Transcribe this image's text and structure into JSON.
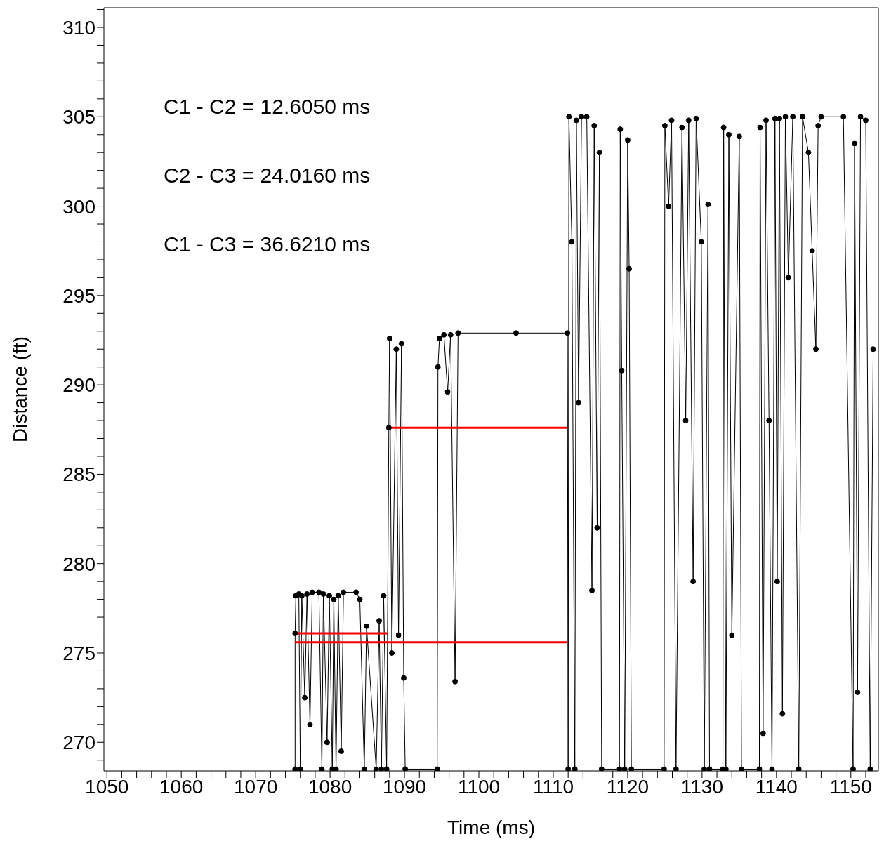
{
  "chart_data": {
    "type": "line",
    "xlabel": "Time (ms)",
    "ylabel": "Distance (ft)",
    "marker": "circle",
    "annotations": [
      "C1 - C2 = 12.6050 ms",
      "C2 - C3 = 24.0160 ms",
      "C1 - C3 = 36.6210 ms"
    ],
    "xlim": [
      1049.6,
      1153.7
    ],
    "ylim": [
      268.4,
      311.1
    ],
    "xticks": [
      1050,
      {
        "value": 1052,
        "label": null
      },
      {
        "value": 1054,
        "label": null
      },
      {
        "value": 1056,
        "label": null
      },
      {
        "value": 1058,
        "label": null
      },
      1060,
      {
        "value": 1062,
        "label": null
      },
      {
        "value": 1064,
        "label": null
      },
      {
        "value": 1066,
        "label": null
      },
      {
        "value": 1068,
        "label": null
      },
      1070,
      {
        "value": 1072,
        "label": null
      },
      {
        "value": 1074,
        "label": null
      },
      {
        "value": 1076,
        "label": null
      },
      {
        "value": 1078,
        "label": null
      },
      1080,
      {
        "value": 1082,
        "label": null
      },
      {
        "value": 1084,
        "label": null
      },
      {
        "value": 1086,
        "label": null
      },
      {
        "value": 1088,
        "label": null
      },
      1090,
      {
        "value": 1092,
        "label": null
      },
      {
        "value": 1094,
        "label": null
      },
      {
        "value": 1096,
        "label": null
      },
      {
        "value": 1098,
        "label": null
      },
      1100,
      {
        "value": 1102,
        "label": null
      },
      {
        "value": 1104,
        "label": null
      },
      {
        "value": 1106,
        "label": null
      },
      {
        "value": 1108,
        "label": null
      },
      1110,
      {
        "value": 1112,
        "label": null
      },
      {
        "value": 1114,
        "label": null
      },
      {
        "value": 1116,
        "label": null
      },
      {
        "value": 1118,
        "label": null
      },
      1120,
      {
        "value": 1122,
        "label": null
      },
      {
        "value": 1124,
        "label": null
      },
      {
        "value": 1126,
        "label": null
      },
      {
        "value": 1128,
        "label": null
      },
      1130,
      {
        "value": 1132,
        "label": null
      },
      {
        "value": 1134,
        "label": null
      },
      {
        "value": 1136,
        "label": null
      },
      {
        "value": 1138,
        "label": null
      },
      1140,
      {
        "value": 1142,
        "label": null
      },
      {
        "value": 1144,
        "label": null
      },
      {
        "value": 1146,
        "label": null
      },
      {
        "value": 1148,
        "label": null
      },
      1150,
      {
        "value": 1152,
        "label": null
      }
    ],
    "yticks": [
      {
        "value": 269,
        "label": null
      },
      270,
      {
        "value": 271,
        "label": null
      },
      {
        "value": 272,
        "label": null
      },
      {
        "value": 273,
        "label": null
      },
      {
        "value": 274,
        "label": null
      },
      275,
      {
        "value": 276,
        "label": null
      },
      {
        "value": 277,
        "label": null
      },
      {
        "value": 278,
        "label": null
      },
      {
        "value": 279,
        "label": null
      },
      280,
      {
        "value": 281,
        "label": null
      },
      {
        "value": 282,
        "label": null
      },
      {
        "value": 283,
        "label": null
      },
      {
        "value": 284,
        "label": null
      },
      285,
      {
        "value": 286,
        "label": null
      },
      {
        "value": 287,
        "label": null
      },
      {
        "value": 288,
        "label": null
      },
      {
        "value": 289,
        "label": null
      },
      290,
      {
        "value": 291,
        "label": null
      },
      {
        "value": 292,
        "label": null
      },
      {
        "value": 293,
        "label": null
      },
      {
        "value": 294,
        "label": null
      },
      295,
      {
        "value": 296,
        "label": null
      },
      {
        "value": 297,
        "label": null
      },
      {
        "value": 298,
        "label": null
      },
      {
        "value": 299,
        "label": null
      },
      300,
      {
        "value": 301,
        "label": null
      },
      {
        "value": 302,
        "label": null
      },
      {
        "value": 303,
        "label": null
      },
      {
        "value": 304,
        "label": null
      },
      305,
      {
        "value": 306,
        "label": null
      },
      {
        "value": 307,
        "label": null
      },
      {
        "value": 308,
        "label": null
      },
      {
        "value": 309,
        "label": null
      },
      310,
      {
        "value": 311,
        "label": null
      }
    ],
    "series": [
      {
        "color": "#000000",
        "x": [
          1075.3,
          1075.3,
          1075.4,
          1075.8,
          1076.0,
          1076.2,
          1076.6,
          1076.9,
          1077.3,
          1077.6,
          1078.5,
          1078.9,
          1079.1,
          1079.6,
          1079.9,
          1080.3,
          1080.5,
          1080.8,
          1081.1,
          1081.5,
          1081.8,
          1083.5,
          1084.0,
          1084.6,
          1084.9,
          1086.2,
          1086.6,
          1086.9,
          1087.2,
          1087.6,
          1087.9,
          1088.0,
          1088.3,
          1088.9,
          1089.2,
          1089.6,
          1089.9,
          1090.1,
          1094.4,
          1094.5,
          1094.7,
          1095.3,
          1095.8,
          1096.2,
          1096.8,
          1097.2,
          1105.0,
          1111.9,
          1112.0,
          1112.1,
          1112.5,
          1112.9,
          1113.1,
          1113.4,
          1113.8,
          1114.5,
          1115.2,
          1115.5,
          1115.9,
          1116.2,
          1116.5,
          1118.9,
          1119.0,
          1119.2,
          1119.6,
          1120.0,
          1120.2,
          1120.5,
          1124.9,
          1125.0,
          1125.5,
          1125.9,
          1126.5,
          1127.3,
          1127.8,
          1128.2,
          1128.8,
          1129.2,
          1129.9,
          1130.3,
          1130.8,
          1131.0,
          1132.8,
          1132.9,
          1133.2,
          1133.6,
          1134.0,
          1135.0,
          1135.3,
          1137.7,
          1137.8,
          1138.2,
          1138.6,
          1139.0,
          1139.4,
          1139.8,
          1140.1,
          1140.4,
          1140.8,
          1141.2,
          1141.6,
          1142.2,
          1143.0,
          1143.5,
          1144.3,
          1144.8,
          1145.3,
          1145.6,
          1146.0,
          1149.0,
          1150.3,
          1150.5,
          1150.9,
          1151.3,
          1152.0,
          1152.6,
          1153.0
        ],
        "values": [
          268.5,
          276.1,
          278.2,
          278.3,
          268.5,
          278.2,
          272.5,
          278.3,
          271.0,
          278.4,
          278.4,
          268.5,
          278.3,
          270.0,
          278.2,
          268.5,
          278.0,
          268.5,
          278.2,
          269.5,
          278.4,
          278.4,
          278.0,
          268.5,
          276.5,
          268.5,
          276.8,
          268.5,
          278.2,
          268.5,
          287.6,
          292.6,
          275.0,
          292.0,
          276.0,
          292.3,
          273.6,
          268.5,
          268.5,
          291.0,
          292.6,
          292.8,
          289.6,
          292.8,
          273.4,
          292.9,
          292.9,
          292.9,
          268.5,
          305.0,
          298.0,
          268.5,
          304.8,
          289.0,
          305.0,
          305.0,
          278.5,
          304.5,
          282.0,
          303.0,
          268.5,
          268.5,
          304.3,
          290.8,
          268.5,
          303.7,
          296.5,
          268.5,
          268.5,
          304.5,
          300.0,
          304.8,
          268.5,
          304.4,
          288.0,
          304.8,
          279.0,
          304.9,
          298.0,
          268.5,
          300.1,
          268.5,
          268.5,
          304.4,
          268.5,
          304.0,
          276.0,
          303.9,
          268.5,
          268.5,
          304.4,
          270.5,
          304.8,
          288.0,
          268.5,
          304.9,
          279.0,
          304.9,
          271.6,
          305.0,
          296.0,
          305.0,
          268.5,
          305.0,
          303.0,
          297.5,
          292.0,
          304.5,
          305.0,
          305.0,
          268.5,
          303.5,
          272.8,
          305.0,
          304.8,
          268.5,
          292.0
        ]
      },
      {
        "color": "#ff0000",
        "marker": "none",
        "x": [
          1087.9,
          1111.9
        ],
        "values": [
          287.6,
          287.6
        ]
      },
      {
        "color": "#ff0000",
        "marker": "none",
        "x": [
          1075.3,
          1111.9
        ],
        "values": [
          275.6,
          275.6
        ]
      },
      {
        "color": "#ff0000",
        "marker": "none",
        "x": [
          1075.3,
          1087.7
        ],
        "values": [
          276.1,
          276.1
        ]
      }
    ]
  }
}
